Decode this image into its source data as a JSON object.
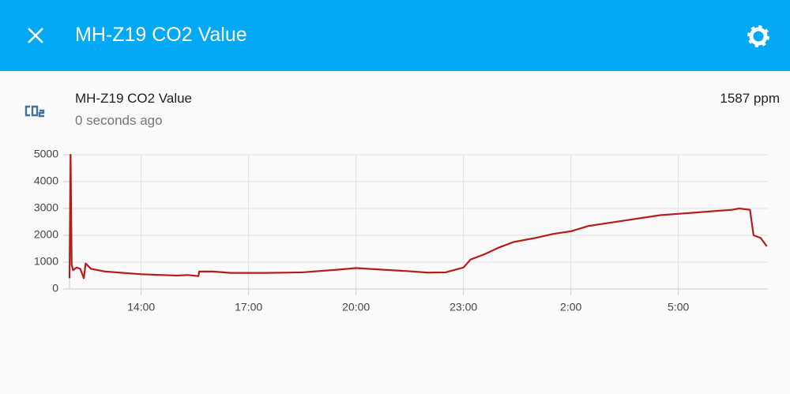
{
  "header": {
    "title": "MH-Z19 CO2 Value"
  },
  "entity": {
    "name": "MH-Z19 CO2 Value",
    "last_changed": "0 seconds ago",
    "state": "1587 ppm"
  },
  "chart_data": {
    "type": "line",
    "color": "#b71c1c",
    "grid": true,
    "x": [
      12.0,
      12.03,
      12.06,
      12.1,
      12.2,
      12.3,
      12.4,
      12.45,
      12.6,
      13.0,
      14.0,
      15.0,
      15.3,
      15.6,
      15.62,
      16.0,
      16.5,
      17.5,
      18.5,
      19.5,
      20.0,
      20.5,
      21.5,
      22.0,
      22.5,
      23.0,
      23.2,
      23.6,
      24.0,
      24.4,
      25.0,
      25.5,
      26.0,
      26.5,
      27.0,
      27.5,
      28.0,
      28.5,
      29.0,
      29.5,
      30.0,
      30.5,
      30.7,
      31.0,
      31.1,
      31.3,
      31.47
    ],
    "values": [
      400,
      5000,
      900,
      700,
      800,
      750,
      400,
      950,
      750,
      650,
      550,
      500,
      520,
      480,
      650,
      650,
      600,
      600,
      620,
      720,
      780,
      740,
      660,
      610,
      620,
      800,
      1100,
      1300,
      1550,
      1750,
      1900,
      2050,
      2150,
      2350,
      2450,
      2550,
      2650,
      2750,
      2800,
      2850,
      2900,
      2950,
      3000,
      2950,
      2000,
      1900,
      1587
    ],
    "xlim": [
      12.0,
      31.5
    ],
    "xticks": [
      {
        "value": 14,
        "label": "14:00"
      },
      {
        "value": 17,
        "label": "17:00"
      },
      {
        "value": 20,
        "label": "20:00"
      },
      {
        "value": 23,
        "label": "23:00"
      },
      {
        "value": 26,
        "label": "2:00"
      },
      {
        "value": 29,
        "label": "5:00"
      }
    ],
    "ylim": [
      0,
      5000
    ],
    "yticks": [
      0,
      1000,
      2000,
      3000,
      4000,
      5000
    ]
  }
}
